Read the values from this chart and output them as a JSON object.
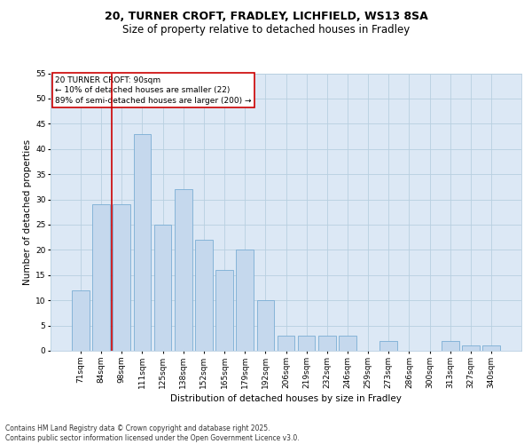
{
  "title_line1": "20, TURNER CROFT, FRADLEY, LICHFIELD, WS13 8SA",
  "title_line2": "Size of property relative to detached houses in Fradley",
  "xlabel": "Distribution of detached houses by size in Fradley",
  "ylabel": "Number of detached properties",
  "categories": [
    "71sqm",
    "84sqm",
    "98sqm",
    "111sqm",
    "125sqm",
    "138sqm",
    "152sqm",
    "165sqm",
    "179sqm",
    "192sqm",
    "206sqm",
    "219sqm",
    "232sqm",
    "246sqm",
    "259sqm",
    "273sqm",
    "286sqm",
    "300sqm",
    "313sqm",
    "327sqm",
    "340sqm"
  ],
  "values": [
    12,
    29,
    29,
    43,
    25,
    32,
    22,
    16,
    20,
    10,
    3,
    3,
    3,
    3,
    0,
    2,
    0,
    0,
    2,
    1,
    1
  ],
  "bar_color": "#c5d8ed",
  "bar_edge_color": "#7aadd4",
  "grid_color": "#b8cfe0",
  "background_color": "#dce8f5",
  "annotation_box_text": "20 TURNER CROFT: 90sqm\n← 10% of detached houses are smaller (22)\n89% of semi-detached houses are larger (200) →",
  "annotation_box_color": "#ffffff",
  "annotation_box_edge_color": "#cc0000",
  "vline_color": "#cc0000",
  "vline_x_index": 1.5,
  "ylim": [
    0,
    55
  ],
  "yticks": [
    0,
    5,
    10,
    15,
    20,
    25,
    30,
    35,
    40,
    45,
    50,
    55
  ],
  "footer_text": "Contains HM Land Registry data © Crown copyright and database right 2025.\nContains public sector information licensed under the Open Government Licence v3.0.",
  "title1_fontsize": 9,
  "title2_fontsize": 8.5,
  "axis_label_fontsize": 7.5,
  "tick_fontsize": 6.5,
  "annotation_fontsize": 6.5,
  "footer_fontsize": 5.5
}
